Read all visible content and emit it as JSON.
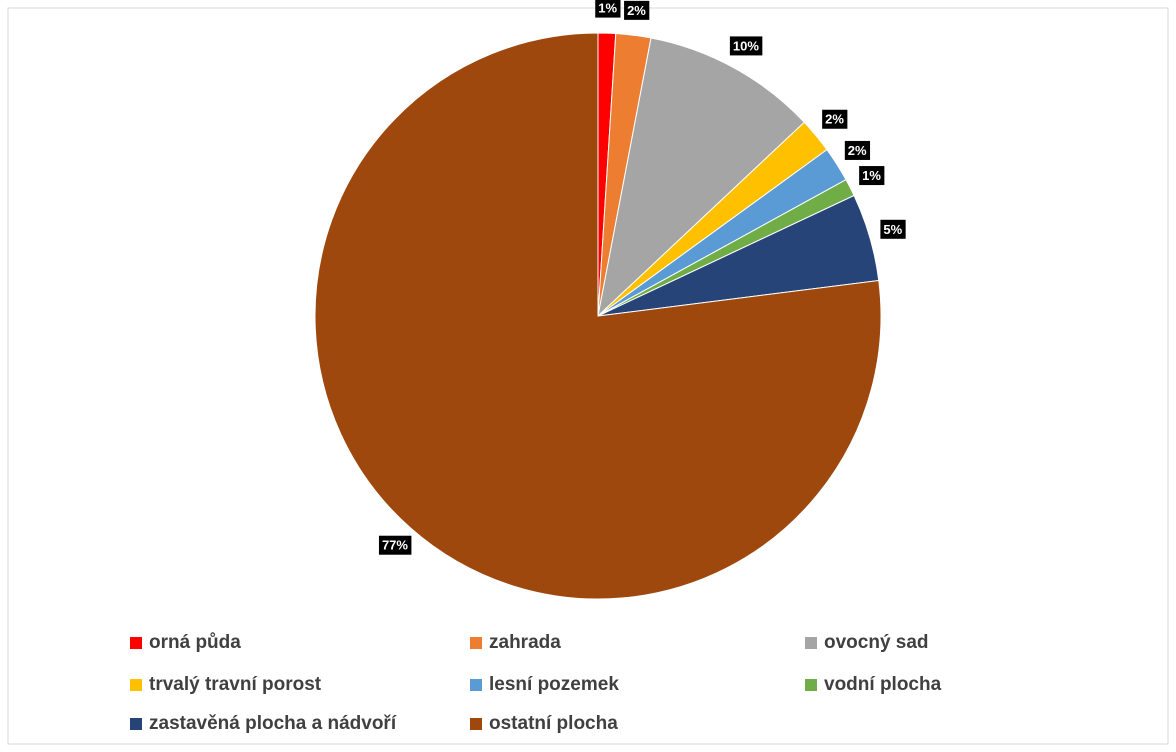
{
  "chart_data": {
    "type": "pie",
    "categories": [
      "orná půda",
      "zahrada",
      "ovocný sad",
      "trvalý travní porost",
      "lesní pozemek",
      "vodní plocha",
      "zastavěná plocha a nádvoří",
      "ostatní plocha"
    ],
    "values": [
      1,
      2,
      10,
      2,
      2,
      1,
      5,
      77
    ],
    "value_labels": [
      "1%",
      "2%",
      "10%",
      "2%",
      "2%",
      "1%",
      "5%",
      "77%"
    ],
    "colors": [
      "#ff0000",
      "#ed7d31",
      "#a5a5a5",
      "#ffc000",
      "#5b9bd5",
      "#70ad47",
      "#264478",
      "#9e480e"
    ],
    "legend": "bottom"
  }
}
